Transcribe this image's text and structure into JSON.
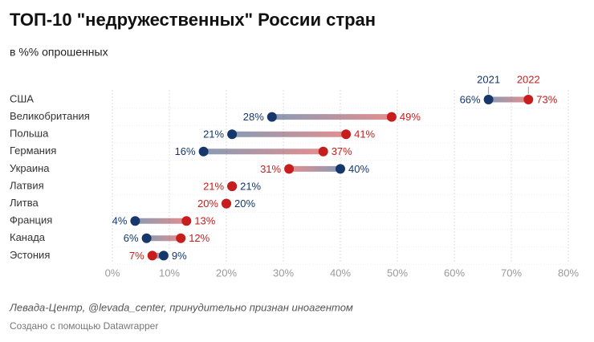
{
  "chart_data": {
    "type": "dumbbell",
    "title": "ТОП-10 \"недружественных\" России стран",
    "subtitle": "в %% опрошенных",
    "categories": [
      "США",
      "Великобритания",
      "Польша",
      "Германия",
      "Украина",
      "Латвия",
      "Литва",
      "Франция",
      "Канада",
      "Эстония"
    ],
    "series": [
      {
        "name": "2021",
        "color": "#15376b",
        "values": [
          66,
          28,
          21,
          16,
          40,
          21,
          20,
          4,
          6,
          9
        ],
        "value_labels": [
          "66%",
          "28%",
          "21%",
          "16%",
          "40%",
          "21%",
          "20%",
          "4%",
          "6%",
          "9%"
        ]
      },
      {
        "name": "2022",
        "color": "#c71e1d",
        "values": [
          73,
          49,
          41,
          37,
          31,
          21,
          20,
          13,
          12,
          7
        ],
        "value_labels": [
          "73%",
          "49%",
          "41%",
          "37%",
          "31%",
          "21%",
          "20%",
          "13%",
          "12%",
          "7%"
        ]
      }
    ],
    "xlim": [
      0,
      80
    ],
    "xticks": [
      {
        "value": 0,
        "label": "0%"
      },
      {
        "value": 10,
        "label": "10%"
      },
      {
        "value": 20,
        "label": "20%"
      },
      {
        "value": 30,
        "label": "30%"
      },
      {
        "value": 40,
        "label": "40%"
      },
      {
        "value": 50,
        "label": "50%"
      },
      {
        "value": 60,
        "label": "60%"
      },
      {
        "value": 70,
        "label": "70%"
      },
      {
        "value": 80,
        "label": "80%"
      }
    ],
    "grid": true,
    "source": "Левада-Центр, @levada_center, принудительно признан иноагентом",
    "credit": "Создано с помощью Datawrapper"
  }
}
